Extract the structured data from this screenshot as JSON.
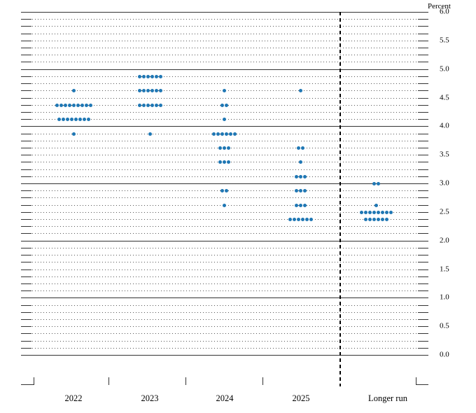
{
  "chart_data": {
    "type": "scatter",
    "chart_kind": "fomc-dot-plot",
    "title": "",
    "xlabel": "",
    "ylabel": "Percent",
    "y_min": 0,
    "y_max": 6,
    "y_gridline_step": 0.125,
    "y_label_step": 0.5,
    "grid": true,
    "legend": false,
    "dot_color": "#1f77b4",
    "axis_line_color": "#333333",
    "categories": [
      "2022",
      "2023",
      "2024",
      "2025",
      "Longer run"
    ],
    "y_tick_labels": [
      {
        "value": 6.0,
        "label": "6.0"
      },
      {
        "value": 5.5,
        "label": "5.5"
      },
      {
        "value": 5.0,
        "label": "5.0"
      },
      {
        "value": 4.5,
        "label": "4.5"
      },
      {
        "value": 4.0,
        "label": "4.0"
      },
      {
        "value": 3.5,
        "label": "3.5"
      },
      {
        "value": 3.0,
        "label": "3.0"
      },
      {
        "value": 2.5,
        "label": "2.5"
      },
      {
        "value": 2.0,
        "label": "2.0"
      },
      {
        "value": 1.5,
        "label": "1.5"
      },
      {
        "value": 1.0,
        "label": "1.0"
      },
      {
        "value": 0.5,
        "label": "0.5"
      },
      {
        "value": 0.0,
        "label": "0.0"
      }
    ],
    "series": [
      {
        "name": "2022",
        "dots": [
          {
            "rate": 4.625,
            "count": 1
          },
          {
            "rate": 4.375,
            "count": 9
          },
          {
            "rate": 4.125,
            "count": 8
          },
          {
            "rate": 3.875,
            "count": 1
          }
        ]
      },
      {
        "name": "2023",
        "dots": [
          {
            "rate": 4.875,
            "count": 6
          },
          {
            "rate": 4.625,
            "count": 6
          },
          {
            "rate": 4.375,
            "count": 6
          },
          {
            "rate": 3.875,
            "count": 1
          }
        ]
      },
      {
        "name": "2024",
        "dots": [
          {
            "rate": 4.625,
            "count": 1
          },
          {
            "rate": 4.375,
            "count": 2
          },
          {
            "rate": 4.125,
            "count": 1
          },
          {
            "rate": 3.875,
            "count": 6
          },
          {
            "rate": 3.625,
            "count": 3
          },
          {
            "rate": 3.375,
            "count": 3
          },
          {
            "rate": 2.875,
            "count": 2
          },
          {
            "rate": 2.625,
            "count": 1
          }
        ]
      },
      {
        "name": "2025",
        "dots": [
          {
            "rate": 4.625,
            "count": 1
          },
          {
            "rate": 3.625,
            "count": 2
          },
          {
            "rate": 3.375,
            "count": 1
          },
          {
            "rate": 3.125,
            "count": 3
          },
          {
            "rate": 2.875,
            "count": 3
          },
          {
            "rate": 2.625,
            "count": 3
          },
          {
            "rate": 2.375,
            "count": 6
          }
        ]
      },
      {
        "name": "Longer run",
        "dots": [
          {
            "rate": 3.0,
            "count": 2
          },
          {
            "rate": 2.625,
            "count": 1
          },
          {
            "rate": 2.5,
            "count": 8
          },
          {
            "rate": 2.375,
            "count": 6
          }
        ]
      }
    ],
    "separator_after_category": "2025"
  }
}
